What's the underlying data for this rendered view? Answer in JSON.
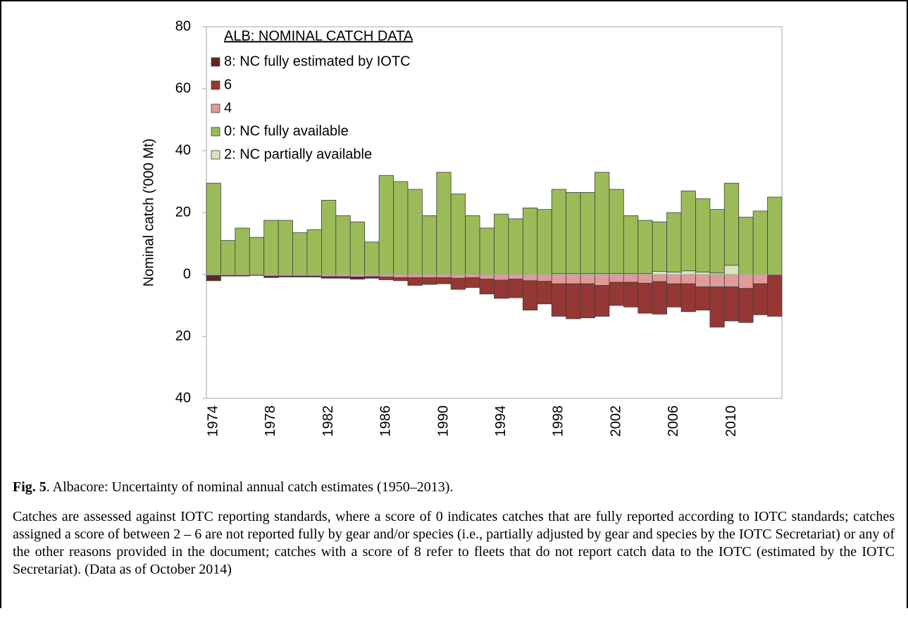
{
  "chart_data": {
    "type": "stacked-bar",
    "title": "ALB: NOMINAL CATCH DATA",
    "y_label": "Nominal catch ('000 Mt)",
    "categories": [
      "1974",
      null,
      null,
      null,
      "1978",
      null,
      null,
      null,
      "1982",
      null,
      null,
      null,
      "1986",
      null,
      null,
      null,
      "1990",
      null,
      null,
      null,
      "1994",
      null,
      null,
      null,
      "1998",
      null,
      null,
      null,
      "2002",
      null,
      null,
      null,
      "2006",
      null,
      null,
      null,
      "2010",
      null,
      null,
      null
    ],
    "series": [
      {
        "name": "8: NC fully estimated by IOTC",
        "color": "#632523",
        "values": [
          -1.5,
          -0.2,
          -0.2,
          -0.1,
          -0.5,
          -0.3,
          -0.3,
          -0.3,
          -0.5,
          -0.5,
          -0.7,
          -0.5,
          0,
          0,
          0,
          0,
          0,
          0,
          0,
          0,
          0,
          0,
          0,
          0,
          0,
          0,
          0,
          0,
          0,
          0,
          0,
          0,
          0,
          0,
          0,
          0,
          0,
          0,
          0,
          0
        ]
      },
      {
        "name": "6",
        "color": "#953735",
        "values": [
          -0.2,
          0,
          0,
          0,
          0,
          0,
          0,
          0,
          0,
          0,
          0,
          0,
          -0.9,
          -1,
          -2.5,
          -2.2,
          -2,
          -3.6,
          -3.2,
          -4.8,
          -5.9,
          -6,
          -9.5,
          -7.3,
          -10.5,
          -11.3,
          -11,
          -10,
          -7.5,
          -8,
          -9.7,
          -10.5,
          -7.5,
          -9,
          -7.5,
          -13,
          -11,
          -11,
          -10,
          -13.5
        ]
      },
      {
        "name": "4",
        "color": "#e09b99",
        "values": [
          -0.3,
          -0.3,
          -0.3,
          -0.2,
          -0.5,
          -0.5,
          -0.5,
          -0.5,
          -0.7,
          -0.7,
          -0.8,
          -0.7,
          -0.8,
          -1,
          -1,
          -1,
          -1,
          -1.2,
          -1,
          -1.5,
          -1.8,
          -1.5,
          -2,
          -2.2,
          -3,
          -3,
          -3,
          -3.5,
          -2.5,
          -2.5,
          -2.8,
          -2.3,
          -3,
          -3,
          -4,
          -4,
          -4,
          -4.5,
          -3,
          0
        ]
      },
      {
        "name": "0: NC fully available",
        "color": "#9bbb59",
        "values": [
          29.5,
          11,
          15,
          12,
          17.5,
          17.5,
          13.5,
          14.5,
          24,
          19,
          17,
          10.5,
          32,
          30,
          27.5,
          19,
          33,
          26,
          19,
          15,
          19.5,
          18,
          21.5,
          21,
          27.2,
          26.2,
          26.2,
          32.7,
          27.2,
          18.7,
          17.2,
          16,
          19.2,
          25.8,
          23.7,
          20.5,
          26.5,
          18.5,
          20.5,
          25
        ]
      },
      {
        "name": "2: NC partially available",
        "color": "#d7e4bd",
        "values": [
          0,
          0,
          0,
          0,
          0,
          0,
          0,
          0,
          0,
          0,
          0,
          0,
          0,
          0,
          0,
          0,
          0,
          0,
          0,
          0,
          0,
          0,
          0,
          0,
          0.3,
          0.3,
          0.3,
          0.3,
          0.3,
          0.3,
          0.3,
          1,
          0.8,
          1.2,
          0.8,
          0.5,
          3,
          0,
          0,
          0
        ]
      }
    ],
    "ylim": [
      -40,
      80
    ],
    "yticks": [
      80,
      60,
      40,
      20,
      0,
      {
        "value": -20,
        "label": "20"
      },
      {
        "value": -40,
        "label": "40"
      }
    ],
    "negative_tick_label_color": "#ff0000",
    "bar_edge_color": "#404040",
    "grid": false
  },
  "caption": {
    "label": "Fig. 5",
    "text": ".  Albacore: Uncertainty of nominal annual catch estimates (1950–2013)."
  },
  "body": "Catches are assessed against IOTC reporting standards, where a score of 0 indicates catches that are fully reported according to IOTC standards; catches assigned a score of between 2 – 6 are not reported fully by gear and/or species (i.e., partially adjusted by gear and species by the IOTC Secretariat) or any of the other reasons provided in the document; catches with a score of 8 refer to fleets that do not report catch data to the IOTC (estimated by the IOTC Secretariat). (Data as of October 2014)"
}
